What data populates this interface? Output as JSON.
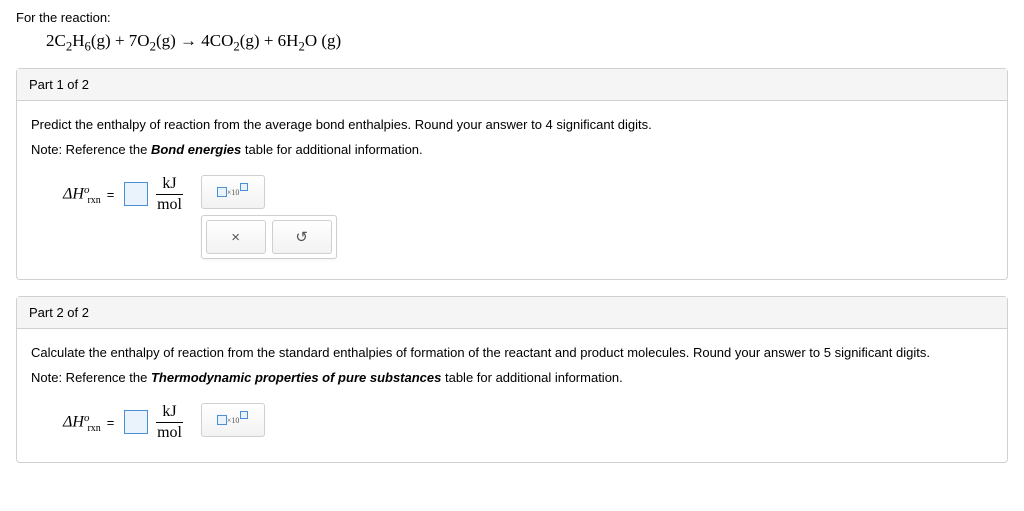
{
  "intro": "For the reaction:",
  "equation_html": "2C<sub>2</sub>H<sub>6</sub>(g) + 7O<sub>2</sub>(g) → 4CO<sub>2</sub>(g) + 6H<sub>2</sub>O (g)",
  "part1": {
    "header": "Part 1 of 2",
    "prompt": "Predict the enthalpy of reaction from the average bond enthalpies. Round your answer to 4 significant digits.",
    "note_prefix": "Note: Reference the ",
    "note_bold": "Bond energies",
    "note_suffix": " table for additional information.",
    "lhs_symbol": "ΔH",
    "lhs_sup": "o",
    "lhs_sub": "rxn",
    "equals": "=",
    "unit_num": "kJ",
    "unit_den": "mol",
    "input_value": "",
    "tools": {
      "sci": "×10",
      "clear": "×",
      "reset": "↺"
    }
  },
  "part2": {
    "header": "Part 2 of 2",
    "prompt": "Calculate the enthalpy of reaction from the standard enthalpies of formation of the reactant and product molecules. Round your answer to 5 significant digits.",
    "note_prefix": "Note: Reference the ",
    "note_bold": "Thermodynamic properties of pure substances",
    "note_suffix": " table for additional information.",
    "lhs_symbol": "ΔH",
    "lhs_sup": "o",
    "lhs_sub": "rxn",
    "equals": "=",
    "unit_num": "kJ",
    "unit_den": "mol",
    "input_value": "",
    "tools": {
      "sci": "×10"
    }
  }
}
